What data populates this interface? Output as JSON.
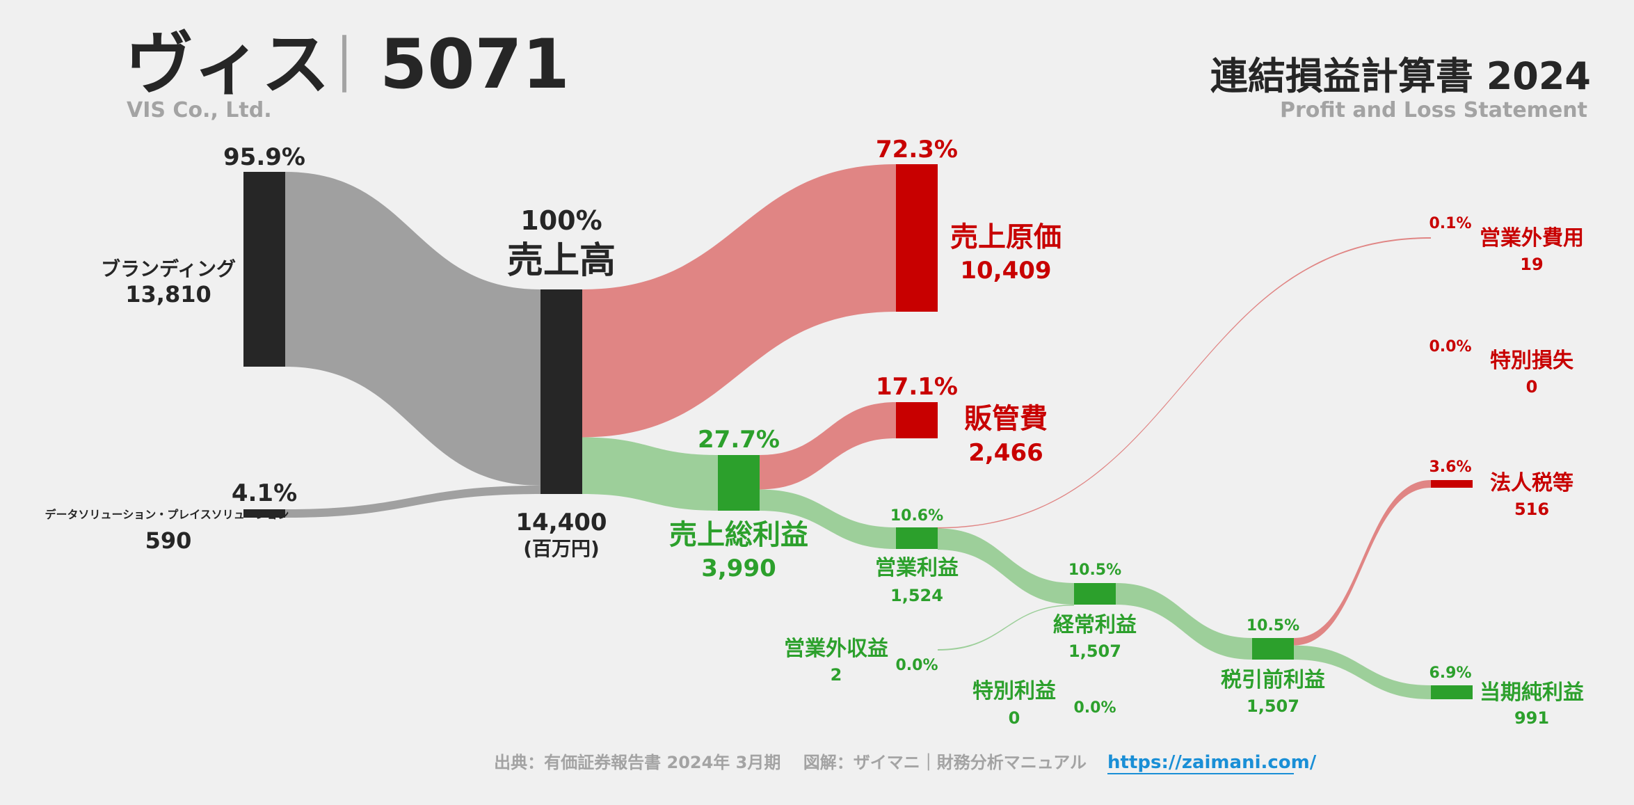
{
  "header": {
    "company": "ヴィス",
    "separator": "｜",
    "code": "5071",
    "company_en": "VIS Co., Ltd.",
    "statement": "連結損益計算書 2024",
    "statement_en": "Profit and Loss Statement"
  },
  "footer": {
    "source": "出典：有価証券報告書 2024年 3月期　 図解：ザイマニ｜財務分析マニュアル",
    "url": "https://zaimani.com/"
  },
  "colors": {
    "revenue_node": "#262626",
    "revenue_flow": "#a0a0a0",
    "cost_node": "#c80000",
    "cost_flow": "#e08584",
    "profit_node": "#2ca02c",
    "profit_flow": "#9dcf9a",
    "background": "#f0f0f0"
  },
  "chart_data": {
    "type": "sankey",
    "unit": "(百万円)",
    "nodes": [
      {
        "id": "branding",
        "label": "ブランディング",
        "value": 13810,
        "value_label": "13,810",
        "pct": "95.9%"
      },
      {
        "id": "data",
        "label": "データソリューション・プレイスソリューション",
        "value": 590,
        "value_label": "590",
        "pct": "4.1%"
      },
      {
        "id": "revenue",
        "label": "売上高",
        "value": 14400,
        "value_label": "14,400",
        "pct": "100%"
      },
      {
        "id": "cogs",
        "label": "売上原価",
        "value": 10409,
        "value_label": "10,409",
        "pct": "72.3%"
      },
      {
        "id": "gross",
        "label": "売上総利益",
        "value": 3990,
        "value_label": "3,990",
        "pct": "27.7%"
      },
      {
        "id": "sga",
        "label": "販管費",
        "value": 2466,
        "value_label": "2,466",
        "pct": "17.1%"
      },
      {
        "id": "op",
        "label": "営業利益",
        "value": 1524,
        "value_label": "1,524",
        "pct": "10.6%"
      },
      {
        "id": "nonop_inc",
        "label": "営業外収益",
        "value": 2,
        "value_label": "2",
        "pct": "0.0%"
      },
      {
        "id": "nonop_exp",
        "label": "営業外費用",
        "value": 19,
        "value_label": "19",
        "pct": "0.1%"
      },
      {
        "id": "ordinary",
        "label": "経常利益",
        "value": 1507,
        "value_label": "1,507",
        "pct": "10.5%"
      },
      {
        "id": "ext_gain",
        "label": "特別利益",
        "value": 0,
        "value_label": "0",
        "pct": "0.0%"
      },
      {
        "id": "ext_loss",
        "label": "特別損失",
        "value": 0,
        "value_label": "0",
        "pct": "0.0%"
      },
      {
        "id": "pretax",
        "label": "税引前利益",
        "value": 1507,
        "value_label": "1,507",
        "pct": "10.5%"
      },
      {
        "id": "tax",
        "label": "法人税等",
        "value": 516,
        "value_label": "516",
        "pct": "3.6%"
      },
      {
        "id": "net",
        "label": "当期純利益",
        "value": 991,
        "value_label": "991",
        "pct": "6.9%"
      }
    ],
    "links": [
      {
        "source": "branding",
        "target": "revenue",
        "value": 13810
      },
      {
        "source": "data",
        "target": "revenue",
        "value": 590
      },
      {
        "source": "revenue",
        "target": "cogs",
        "value": 10409
      },
      {
        "source": "revenue",
        "target": "gross",
        "value": 3990
      },
      {
        "source": "gross",
        "target": "sga",
        "value": 2466
      },
      {
        "source": "gross",
        "target": "op",
        "value": 1524
      },
      {
        "source": "op",
        "target": "nonop_exp",
        "value": 19
      },
      {
        "source": "op",
        "target": "ordinary",
        "value": 1507
      },
      {
        "source": "nonop_inc",
        "target": "ordinary",
        "value": 2
      },
      {
        "source": "ordinary",
        "target": "pretax",
        "value": 1507
      },
      {
        "source": "pretax",
        "target": "tax",
        "value": 516
      },
      {
        "source": "pretax",
        "target": "net",
        "value": 991
      }
    ]
  }
}
